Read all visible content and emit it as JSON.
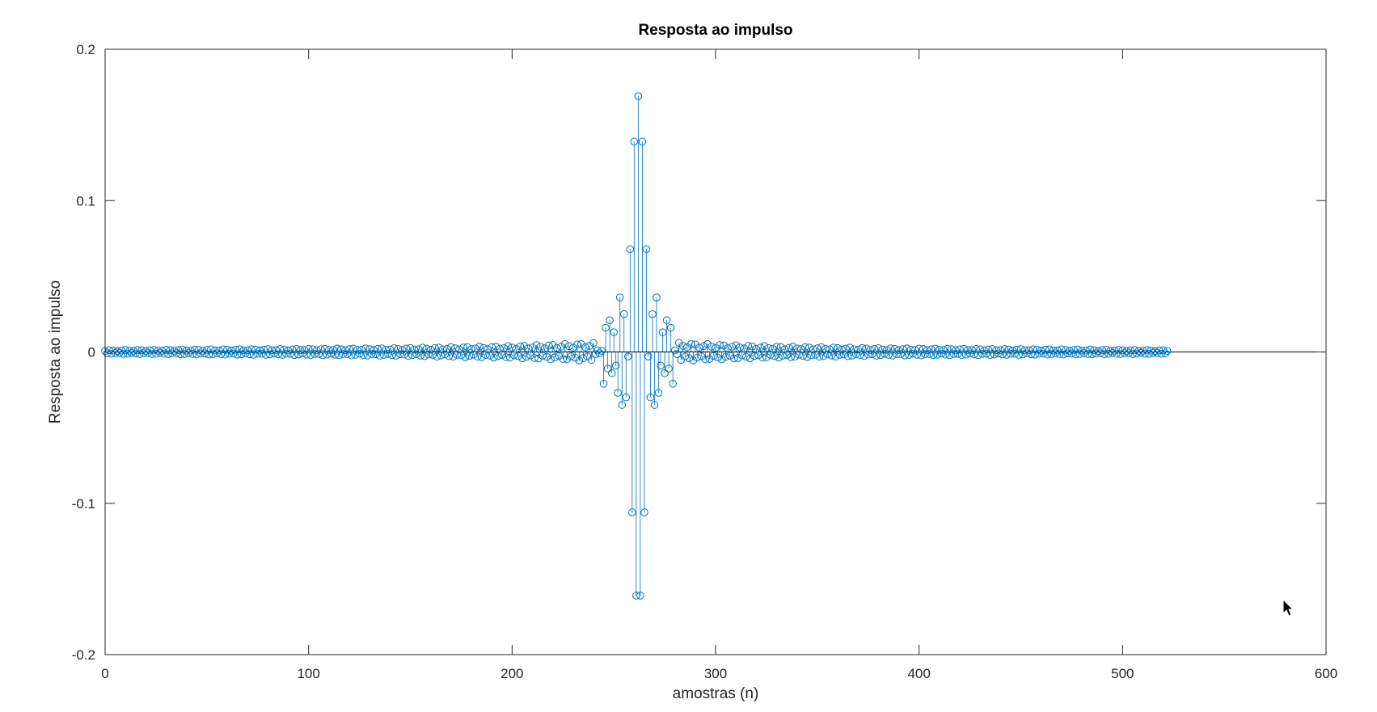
{
  "chart_data": {
    "type": "stem",
    "title": "Resposta ao impulso",
    "xlabel": "amostras (n)",
    "ylabel": "Resposta ao impulso",
    "xlim": [
      0,
      600
    ],
    "ylim": [
      -0.2,
      0.2
    ],
    "xticks": [
      0,
      100,
      200,
      300,
      400,
      500,
      600
    ],
    "yticks": [
      -0.2,
      -0.1,
      0,
      0.1,
      0.2
    ],
    "xtick_labels": [
      "0",
      "100",
      "200",
      "300",
      "400",
      "500",
      "600"
    ],
    "ytick_labels": [
      "-0.2",
      "-0.1",
      "0",
      "0.1",
      "0.2"
    ],
    "grid": false,
    "series_color": "#0072BD",
    "zero_line_color": "#000000",
    "n_samples": 523,
    "x_start": 0,
    "x_end": 522,
    "center": 261,
    "key_points": [
      {
        "x": 245,
        "y": -0.021
      },
      {
        "x": 246,
        "y": 0.016
      },
      {
        "x": 247,
        "y": -0.011
      },
      {
        "x": 248,
        "y": 0.021
      },
      {
        "x": 249,
        "y": -0.014
      },
      {
        "x": 250,
        "y": 0.013
      },
      {
        "x": 251,
        "y": -0.009
      },
      {
        "x": 252,
        "y": -0.027
      },
      {
        "x": 253,
        "y": 0.036
      },
      {
        "x": 254,
        "y": -0.035
      },
      {
        "x": 255,
        "y": 0.025
      },
      {
        "x": 256,
        "y": -0.03
      },
      {
        "x": 257,
        "y": -0.003
      },
      {
        "x": 258,
        "y": 0.068
      },
      {
        "x": 259,
        "y": -0.106
      },
      {
        "x": 260,
        "y": 0.139
      },
      {
        "x": 261,
        "y": -0.161
      },
      {
        "x": 262,
        "y": 0.169
      },
      {
        "x": 263,
        "y": -0.161
      },
      {
        "x": 264,
        "y": 0.139
      },
      {
        "x": 265,
        "y": -0.106
      },
      {
        "x": 266,
        "y": 0.068
      },
      {
        "x": 267,
        "y": -0.003
      },
      {
        "x": 268,
        "y": -0.03
      },
      {
        "x": 269,
        "y": 0.025
      },
      {
        "x": 270,
        "y": -0.035
      },
      {
        "x": 271,
        "y": 0.036
      },
      {
        "x": 272,
        "y": -0.027
      },
      {
        "x": 273,
        "y": -0.009
      },
      {
        "x": 274,
        "y": 0.013
      },
      {
        "x": 275,
        "y": -0.014
      },
      {
        "x": 276,
        "y": 0.021
      },
      {
        "x": 277,
        "y": -0.011
      },
      {
        "x": 278,
        "y": 0.016
      },
      {
        "x": 279,
        "y": -0.021
      }
    ],
    "tail_envelope": [
      {
        "dist": 0,
        "amp": 0.0015
      },
      {
        "dist": 20,
        "amp": 0.006
      },
      {
        "dist": 60,
        "amp": 0.004
      },
      {
        "dist": 120,
        "amp": 0.0025
      },
      {
        "dist": 200,
        "amp": 0.0018
      },
      {
        "dist": 261,
        "amp": 0.0012
      }
    ]
  }
}
